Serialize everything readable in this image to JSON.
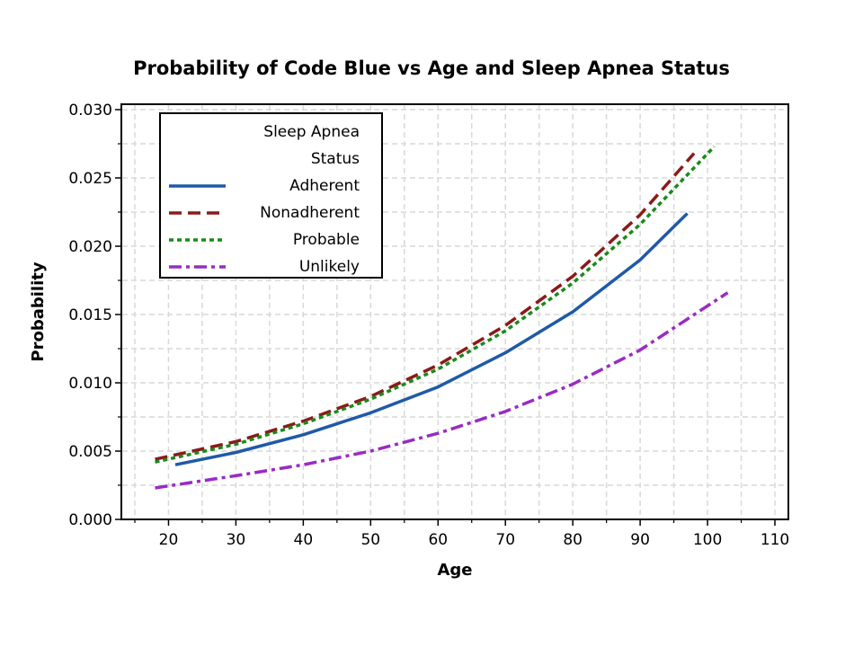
{
  "chart_data": {
    "type": "line",
    "title": "Probability of Code Blue vs Age and Sleep Apnea Status",
    "xlabel": "Age",
    "ylabel": "Probability",
    "xlim": [
      13,
      112
    ],
    "ylim": [
      0,
      0.03
    ],
    "x_ticks": [
      20,
      30,
      40,
      50,
      60,
      70,
      80,
      90,
      100,
      110
    ],
    "x_tick_labels": [
      "20",
      "30",
      "40",
      "50",
      "60",
      "70",
      "80",
      "90",
      "100",
      "110"
    ],
    "y_ticks": [
      0,
      0.005,
      0.01,
      0.015,
      0.02,
      0.025,
      0.03
    ],
    "y_tick_labels": [
      "0.000",
      "0.005",
      "0.010",
      "0.015",
      "0.020",
      "0.025",
      "0.030"
    ],
    "grid": true,
    "legend": {
      "title_lines": [
        "Sleep Apnea",
        "Status"
      ],
      "placement": "top-left"
    },
    "series": [
      {
        "name": "Adherent",
        "color": "#1f5aa6",
        "style": "solid",
        "x": [
          21,
          30,
          40,
          50,
          60,
          70,
          80,
          90,
          97
        ],
        "values": [
          0.004,
          0.0049,
          0.0062,
          0.0078,
          0.0097,
          0.0122,
          0.0152,
          0.019,
          0.0224
        ]
      },
      {
        "name": "Nonadherent",
        "color": "#8b1a1a",
        "style": "dashed",
        "x": [
          18,
          30,
          40,
          50,
          60,
          70,
          80,
          90,
          98
        ],
        "values": [
          0.0044,
          0.0057,
          0.0072,
          0.009,
          0.0113,
          0.0142,
          0.0178,
          0.0223,
          0.0268
        ]
      },
      {
        "name": "Probable",
        "color": "#1a8a1a",
        "style": "dotted",
        "x": [
          18,
          30,
          40,
          50,
          60,
          70,
          80,
          90,
          101
        ],
        "values": [
          0.0042,
          0.0055,
          0.007,
          0.0088,
          0.011,
          0.0138,
          0.0173,
          0.0216,
          0.0273
        ]
      },
      {
        "name": "Unlikely",
        "color": "#9a2bc4",
        "style": "dashdot",
        "x": [
          18,
          30,
          40,
          50,
          60,
          70,
          80,
          90,
          103
        ],
        "values": [
          0.0023,
          0.0032,
          0.004,
          0.005,
          0.0063,
          0.0079,
          0.0099,
          0.0124,
          0.0166
        ]
      }
    ]
  }
}
